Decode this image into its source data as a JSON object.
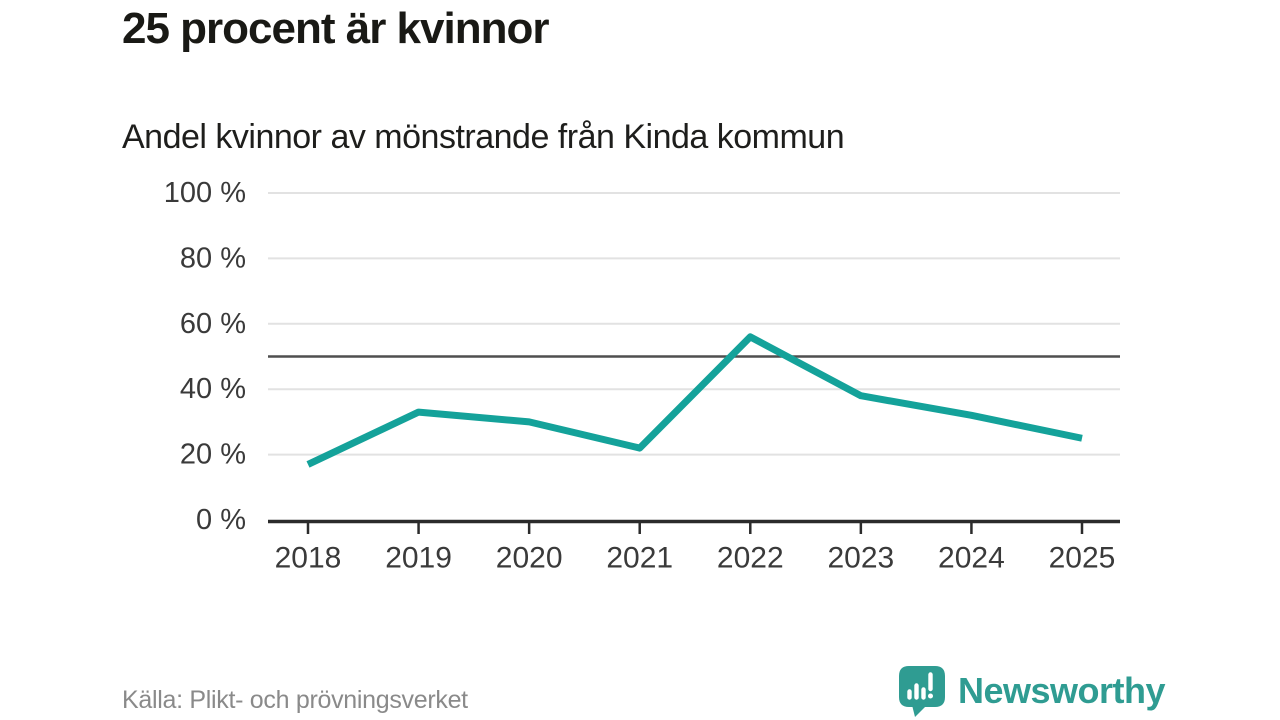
{
  "header": {
    "title": "25 procent är kvinnor",
    "subtitle": "Andel kvinnor av mönstrande från Kinda kommun"
  },
  "chart_data": {
    "type": "line",
    "title": "25 procent är kvinnor",
    "subtitle": "Andel kvinnor av mönstrande från Kinda kommun",
    "x": [
      2018,
      2019,
      2020,
      2021,
      2022,
      2023,
      2024,
      2025
    ],
    "xtick_labels": [
      "2018",
      "2019",
      "2020",
      "2021",
      "2022",
      "2023",
      "2024",
      "2025"
    ],
    "series": [
      {
        "name": "Andel kvinnor av mönstrande",
        "values": [
          17,
          33,
          30,
          22,
          56,
          38,
          32,
          25
        ]
      }
    ],
    "unit": "%",
    "ylim": [
      0,
      100
    ],
    "yticks": [
      0,
      20,
      40,
      60,
      80,
      100
    ],
    "ytick_labels": [
      "0 %",
      "20 %",
      "40 %",
      "60 %",
      "80 %",
      "100 %"
    ],
    "reference_line": 50,
    "grid": "horizontal",
    "legend": "none",
    "colors": {
      "line": "#14a29a",
      "reference_line": "#4f4f4f",
      "grid": "#e2e2e2",
      "axis": "#2b2b2b",
      "tick_label": "#3a3a3a"
    }
  },
  "footer": {
    "source": "Källa: Plikt- och prövningsverket",
    "brand": "Newsworthy",
    "brand_color": "#2f9c92",
    "logo_icon": "bar-chart-speech-bubble-icon"
  }
}
